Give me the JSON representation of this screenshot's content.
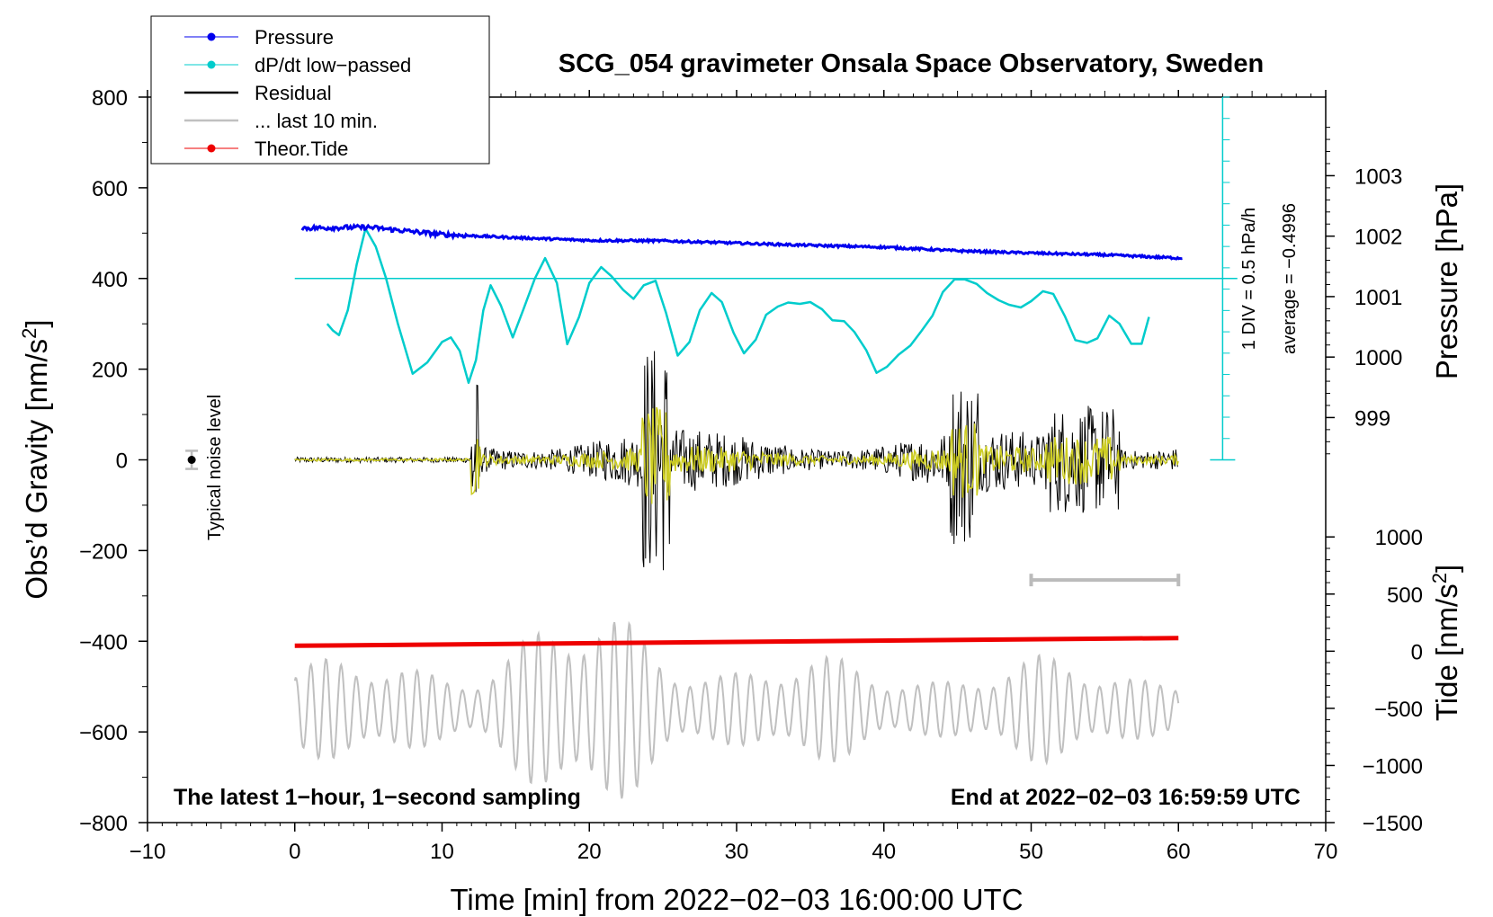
{
  "chart_data": {
    "type": "line",
    "title": "SCG_054 gravimeter Onsala Space Observatory, Sweden",
    "xlabel": "Time [min] from 2022−02−03 16:00:00 UTC",
    "ylabel_left_main": "Obs’d Gravity [nm/s",
    "ylabel_left_sup": "2",
    "ylabel_left_end": "]",
    "ylabel_right_pressure": "Pressure [hPa]",
    "ylabel_right_tide_main": "Tide [nm/s",
    "ylabel_right_tide_sup": "2",
    "ylabel_right_tide_end": "]",
    "xlim": [
      -10,
      70
    ],
    "ylim": [
      -800,
      800
    ],
    "x_ticks": [
      "−10",
      "0",
      "10",
      "20",
      "30",
      "40",
      "50",
      "60",
      "70"
    ],
    "y_ticks": [
      "800",
      "600",
      "400",
      "200",
      "0",
      "−200",
      "−400",
      "−600",
      "−800"
    ],
    "pressure_axis": {
      "range": [
        998.3,
        1004.3
      ],
      "ticks": [
        {
          "v": 1003,
          "label": "1003"
        },
        {
          "v": 1002,
          "label": "1002"
        },
        {
          "v": 1001,
          "label": "1001"
        },
        {
          "v": 1000,
          "label": "1000"
        },
        {
          "v": 999,
          "label": "999"
        }
      ]
    },
    "tide_axis": {
      "range": [
        -1500,
        1000
      ],
      "ticks": [
        {
          "v": 1000,
          "label": "1000"
        },
        {
          "v": 500,
          "label": "500"
        },
        {
          "v": 0,
          "label": "0"
        },
        {
          "v": -500,
          "label": "−500"
        },
        {
          "v": -1000,
          "label": "−1000"
        },
        {
          "v": -1500,
          "label": "−1500"
        }
      ]
    },
    "legend": [
      {
        "label": "Pressure",
        "color": "#0000ee",
        "marker": "dot"
      },
      {
        "label": "dP/dt low−passed",
        "color": "#00cccc",
        "marker": "dot"
      },
      {
        "label": "Residual",
        "color": "#000000",
        "marker": "line"
      },
      {
        "label": "... last 10 min.",
        "color": "#c0c0c0",
        "marker": "line"
      },
      {
        "label": "Theor.Tide",
        "color": "#ee0000",
        "marker": "dot"
      }
    ],
    "annotations": {
      "bottom_left": "The latest 1−hour, 1−second sampling",
      "bottom_right": "End at 2022−02−03 16:59:59 UTC",
      "noise_label": "Typical noise level",
      "div_label": "1 DIV = 0.5 hPa/h",
      "average_label": "average = −0.4996"
    },
    "noise_bar": {
      "x": -7,
      "y": 0,
      "err": 20
    },
    "last10_bar": {
      "x_start": 50,
      "x_end": 60,
      "y": -265
    },
    "dpdt_scale": {
      "x": 63,
      "y_top": 800,
      "y_bottom": 0,
      "divisions": 17
    },
    "series": [
      {
        "name": "Pressure",
        "color": "#0000ee",
        "x": [
          0.5,
          5,
          10,
          15,
          20,
          25,
          30,
          35,
          40,
          45,
          50,
          55,
          60
        ],
        "y": [
          511,
          513,
          497,
          490,
          484,
          483,
          478,
          473,
          469,
          461,
          456,
          452,
          445
        ]
      },
      {
        "name": "dP/dt low−passed",
        "color": "#00cccc",
        "baseline": 400,
        "x": [
          2.2,
          2.6,
          3.0,
          3.6,
          4.2,
          4.8,
          5.5,
          6.2,
          7.0,
          8.0,
          9.0,
          10.0,
          10.6,
          11.2,
          11.8,
          12.3,
          12.8,
          13.3,
          14.0,
          14.8,
          15.5,
          16.3,
          17.0,
          17.8,
          18.5,
          19.3,
          20.0,
          20.8,
          21.5,
          22.3,
          23.0,
          23.7,
          24.5,
          25.2,
          26.0,
          26.8,
          27.5,
          28.3,
          29.0,
          29.8,
          30.5,
          31.3,
          32.0,
          32.8,
          33.5,
          34.3,
          35.0,
          35.8,
          36.5,
          37.3,
          38.0,
          38.8,
          39.5,
          40.2,
          41.0,
          41.8,
          42.5,
          43.3,
          44.0,
          44.8,
          45.5,
          46.3,
          47.0,
          47.8,
          48.5,
          49.3,
          50.0,
          50.8,
          51.5,
          52.3,
          53.0,
          53.8,
          54.5,
          55.3,
          56.0,
          56.8,
          57.5,
          58.0
        ],
        "y": [
          300,
          285,
          275,
          330,
          430,
          510,
          470,
          400,
          300,
          190,
          215,
          260,
          270,
          240,
          170,
          220,
          330,
          385,
          340,
          270,
          330,
          400,
          445,
          390,
          255,
          315,
          390,
          425,
          405,
          375,
          355,
          385,
          395,
          325,
          230,
          260,
          330,
          368,
          348,
          280,
          235,
          265,
          320,
          338,
          347,
          344,
          348,
          332,
          308,
          306,
          282,
          242,
          192,
          205,
          232,
          252,
          282,
          318,
          370,
          398,
          398,
          388,
          368,
          352,
          342,
          336,
          350,
          372,
          366,
          316,
          264,
          258,
          268,
          318,
          300,
          256,
          256,
          315
        ]
      },
      {
        "name": "Residual",
        "color": "#000000",
        "x_range": [
          0,
          60
        ]
      },
      {
        "name": "Residual (filtered)",
        "color": "#cccc22",
        "x_range": [
          0,
          60
        ]
      },
      {
        "name": "... last 10 min.",
        "color": "#c0c0c0",
        "x_range": [
          0,
          60
        ],
        "center": -550
      },
      {
        "name": "Theor.Tide",
        "color": "#ee0000",
        "x": [
          0,
          60
        ],
        "y": [
          -410,
          -393
        ]
      }
    ]
  }
}
